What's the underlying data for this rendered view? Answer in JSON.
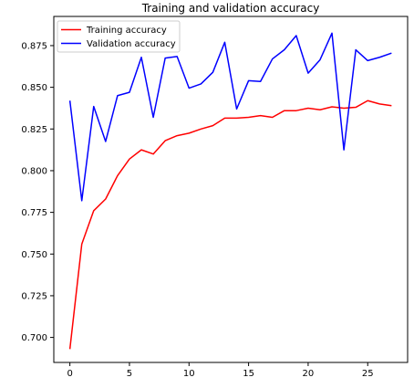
{
  "chart_data": {
    "type": "line",
    "title": "Training and validation accuracy",
    "xlabel": "",
    "ylabel": "",
    "xlim": [
      -1.35,
      28.35
    ],
    "ylim": [
      0.685,
      0.8925
    ],
    "xticks": [
      0,
      5,
      10,
      15,
      20,
      25
    ],
    "yticks": [
      0.7,
      0.725,
      0.75,
      0.775,
      0.8,
      0.825,
      0.85,
      0.875
    ],
    "grid": false,
    "legend_position": "top-left",
    "x": [
      0,
      1,
      2,
      3,
      4,
      5,
      6,
      7,
      8,
      9,
      10,
      11,
      12,
      13,
      14,
      15,
      16,
      17,
      18,
      19,
      20,
      21,
      22,
      23,
      24,
      25,
      26,
      27
    ],
    "series": [
      {
        "name": "Training accuracy",
        "color": "#ff0000",
        "values": [
          0.693,
          0.756,
          0.776,
          0.783,
          0.797,
          0.807,
          0.8125,
          0.81,
          0.818,
          0.821,
          0.8225,
          0.825,
          0.827,
          0.8315,
          0.8315,
          0.832,
          0.833,
          0.832,
          0.836,
          0.836,
          0.8375,
          0.8365,
          0.8383,
          0.8375,
          0.838,
          0.842,
          0.84,
          0.839
        ]
      },
      {
        "name": "Validation accuracy",
        "color": "#0000ff",
        "values": [
          0.842,
          0.782,
          0.8385,
          0.8175,
          0.845,
          0.847,
          0.868,
          0.832,
          0.8675,
          0.8685,
          0.8495,
          0.852,
          0.859,
          0.877,
          0.837,
          0.854,
          0.8535,
          0.867,
          0.8725,
          0.881,
          0.8585,
          0.8665,
          0.8825,
          0.8125,
          0.8725,
          0.866,
          0.868,
          0.8705
        ]
      }
    ]
  }
}
